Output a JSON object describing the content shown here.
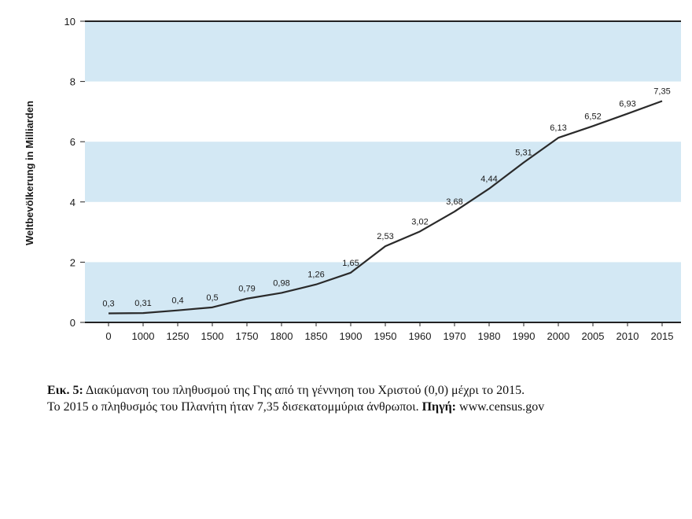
{
  "chart_data": {
    "type": "line",
    "categories": [
      "0",
      "1000",
      "1250",
      "1500",
      "1750",
      "1800",
      "1850",
      "1900",
      "1950",
      "1960",
      "1970",
      "1980",
      "1990",
      "2000",
      "2005",
      "2010",
      "2015"
    ],
    "values": [
      0.3,
      0.31,
      0.4,
      0.5,
      0.79,
      0.98,
      1.26,
      1.65,
      2.53,
      3.02,
      3.68,
      4.44,
      5.31,
      6.13,
      6.52,
      6.93,
      7.35
    ],
    "data_labels": [
      "0,3",
      "0,31",
      "0,4",
      "0,5",
      "0,79",
      "0,98",
      "1,26",
      "1,65",
      "2,53",
      "3,02",
      "3,68",
      "4,44",
      "5,31",
      "6,13",
      "6,52",
      "6,93",
      "7,35"
    ],
    "yticks": [
      "0",
      "2",
      "4",
      "6",
      "8",
      "10"
    ],
    "ylim": [
      0,
      10
    ],
    "ylabel": "Weltbevölkerung in Milliarden",
    "xlabel": "",
    "title": "",
    "grid": "alternating horizontal bands",
    "colors": {
      "band": "#d3e8f4",
      "line": "#2a2a2a",
      "axis": "#222222"
    }
  },
  "caption": {
    "line1_bold": "Εικ. 5:",
    "line1_text": " Διακύμανση του πληθυσμού της Γης από τη γέννηση του Χριστού (0,0) μέχρι το 2015.",
    "line2_text": "Το 2015 ο πληθυσμός του Πλανήτη ήταν 7,35 δισεκατομμύρια άνθρωποι. ",
    "line2_bold": "Πηγή:",
    "line2_tail": " www.census.gov"
  }
}
